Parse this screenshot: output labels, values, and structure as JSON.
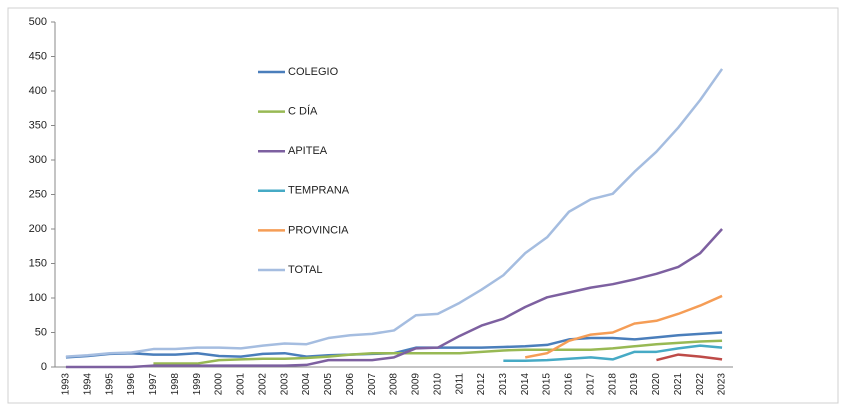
{
  "chart_data": {
    "type": "line",
    "categories": [
      "1993",
      "1994",
      "1995",
      "1996",
      "1997",
      "1998",
      "1999",
      "2000",
      "2001",
      "2002",
      "2003",
      "2004",
      "2005",
      "2006",
      "2007",
      "2008",
      "2009",
      "2010",
      "2011",
      "2012",
      "2013",
      "2014",
      "2015",
      "2016",
      "2017",
      "2018",
      "2019",
      "2020",
      "2021",
      "2022",
      "2023"
    ],
    "series": [
      {
        "name": "COLEGIO",
        "color": "#4a7ebb",
        "values": [
          14,
          16,
          19,
          20,
          18,
          18,
          20,
          16,
          15,
          19,
          20,
          15,
          17,
          18,
          19,
          20,
          28,
          28,
          28,
          28,
          29,
          30,
          32,
          40,
          42,
          42,
          40,
          43,
          46,
          48,
          50
        ]
      },
      {
        "name": "C DÍA",
        "color": "#98b954",
        "values": [
          null,
          null,
          null,
          null,
          5,
          5,
          5,
          10,
          11,
          12,
          12,
          13,
          15,
          18,
          20,
          20,
          20,
          20,
          20,
          22,
          24,
          25,
          25,
          25,
          25,
          27,
          30,
          33,
          35,
          37,
          38
        ]
      },
      {
        "name": "APITEA",
        "color": "#7d60a0",
        "values": [
          0,
          0,
          0,
          0,
          2,
          2,
          2,
          2,
          2,
          2,
          2,
          3,
          10,
          10,
          10,
          14,
          27,
          28,
          45,
          60,
          70,
          87,
          101,
          108,
          115,
          120,
          127,
          135,
          145,
          165,
          200
        ]
      },
      {
        "name": "TEMPRANA",
        "color": "#46aac5",
        "values": [
          null,
          null,
          null,
          null,
          null,
          null,
          null,
          null,
          null,
          null,
          null,
          null,
          null,
          null,
          null,
          null,
          null,
          null,
          null,
          null,
          9,
          9,
          10,
          12,
          14,
          11,
          22,
          22,
          27,
          31,
          28
        ]
      },
      {
        "name": "PROVINCIA",
        "color": "#f59d56",
        "values": [
          null,
          null,
          null,
          null,
          null,
          null,
          null,
          null,
          null,
          null,
          null,
          null,
          null,
          null,
          null,
          null,
          null,
          null,
          null,
          null,
          null,
          14,
          20,
          38,
          47,
          50,
          63,
          67,
          77,
          89,
          103
        ]
      },
      {
        "name": "TOTAL",
        "color": "#a5bde0",
        "values": [
          15,
          17,
          20,
          21,
          26,
          26,
          28,
          28,
          27,
          31,
          34,
          33,
          42,
          46,
          48,
          53,
          75,
          77,
          93,
          112,
          133,
          165,
          188,
          225,
          243,
          251,
          283,
          312,
          347,
          387,
          432
        ]
      },
      {
        "name": null,
        "color": "#be4b48",
        "values": [
          null,
          null,
          null,
          null,
          null,
          null,
          null,
          null,
          null,
          null,
          null,
          null,
          null,
          null,
          null,
          null,
          null,
          null,
          null,
          null,
          null,
          null,
          null,
          null,
          null,
          null,
          null,
          10,
          18,
          15,
          11
        ]
      }
    ],
    "ylim": [
      0,
      500
    ],
    "yticks": [
      0,
      50,
      100,
      150,
      200,
      250,
      300,
      350,
      400,
      450,
      500
    ]
  }
}
